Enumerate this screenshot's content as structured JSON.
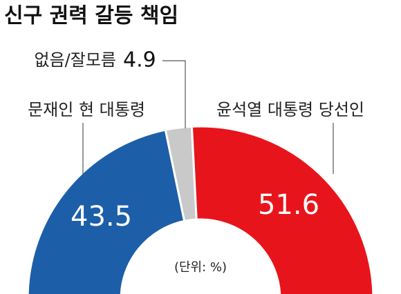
{
  "chart_data": {
    "type": "pie",
    "title": "신구 권력 갈등 책임",
    "categories": [
      "문재인 현 대통령",
      "없음/잘모름",
      "윤석열 대통령 당선인"
    ],
    "values": [
      43.5,
      4.9,
      51.6
    ],
    "colors": [
      "#1d5ea8",
      "#c9c9c9",
      "#e8141b"
    ],
    "note": "(단위: %)"
  }
}
